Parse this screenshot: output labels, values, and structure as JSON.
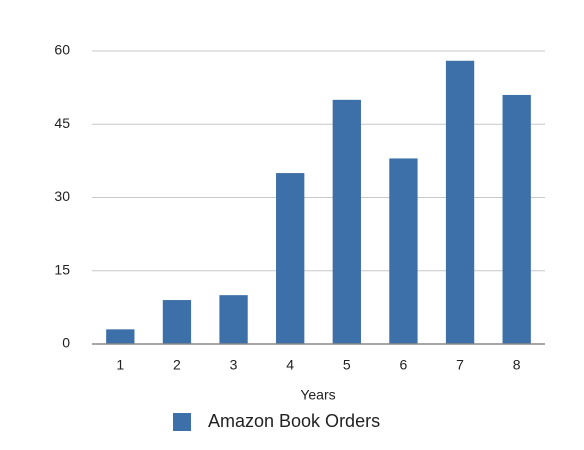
{
  "chart_data": {
    "type": "bar",
    "categories": [
      "1",
      "2",
      "3",
      "4",
      "5",
      "6",
      "7",
      "8"
    ],
    "series": [
      {
        "name": "Amazon Book Orders",
        "color": "#3d6fa8",
        "values": [
          3,
          9,
          10,
          35,
          50,
          38,
          58,
          51
        ]
      }
    ],
    "x_label": "Years",
    "ylim": [
      0,
      60
    ],
    "yticks": [
      0,
      15,
      30,
      45,
      60
    ],
    "grid": true,
    "legend": "bottom"
  }
}
